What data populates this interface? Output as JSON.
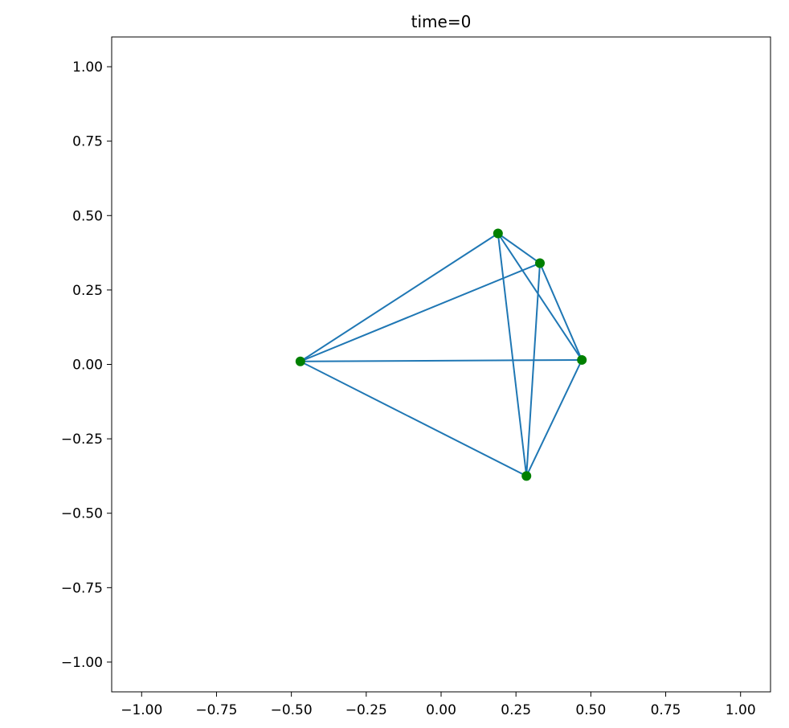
{
  "chart_data": {
    "type": "scatter",
    "title": "time=0",
    "xlabel": "",
    "ylabel": "",
    "xlim": [
      -1.1,
      1.1
    ],
    "ylim": [
      -1.1,
      1.1
    ],
    "grid": false,
    "xticks": [
      -1.0,
      -0.75,
      -0.5,
      -0.25,
      0.0,
      0.25,
      0.5,
      0.75,
      1.0
    ],
    "xtick_labels": [
      "−1.00",
      "−0.75",
      "−0.50",
      "−0.25",
      "0.00",
      "0.25",
      "0.50",
      "0.75",
      "1.00"
    ],
    "yticks": [
      1.0,
      0.75,
      0.5,
      0.25,
      0.0,
      -0.25,
      -0.5,
      -0.75,
      -1.0
    ],
    "ytick_labels": [
      "1.00",
      "0.75",
      "0.50",
      "0.25",
      "0.00",
      "−0.25",
      "−0.50",
      "−0.75",
      "−1.00"
    ],
    "points": [
      {
        "x": -0.47,
        "y": 0.01
      },
      {
        "x": 0.19,
        "y": 0.44
      },
      {
        "x": 0.33,
        "y": 0.34
      },
      {
        "x": 0.47,
        "y": 0.015
      },
      {
        "x": 0.285,
        "y": -0.375
      }
    ],
    "edges": [
      [
        0,
        1
      ],
      [
        0,
        2
      ],
      [
        0,
        3
      ],
      [
        0,
        4
      ],
      [
        1,
        2
      ],
      [
        1,
        3
      ],
      [
        1,
        4
      ],
      [
        2,
        3
      ],
      [
        2,
        4
      ],
      [
        3,
        4
      ]
    ],
    "line_color": "#1f77b4",
    "marker_color": "#008000"
  }
}
